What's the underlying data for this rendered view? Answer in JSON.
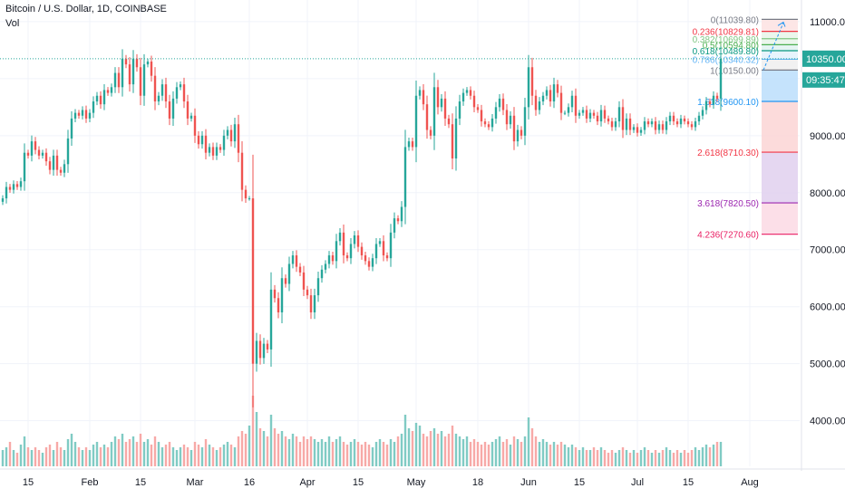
{
  "header": {
    "symbol": "Bitcoin / U.S. Dollar, 1D, COINBASE",
    "volume_label": "Vol"
  },
  "colors": {
    "up": "#26a69a",
    "down": "#ef5350",
    "up_vol": "#80cbc4",
    "down_vol": "#f7a9a7",
    "price_line": "#26a69a",
    "axis_text": "#131722"
  },
  "chart_data": {
    "type": "candlestick",
    "title": "Bitcoin / U.S. Dollar, 1D, COINBASE",
    "ylim": [
      3200,
      11300
    ],
    "y_ticks": [
      "11000.00",
      "10000.00",
      "9000.00",
      "8000.00",
      "7000.00",
      "6000.00",
      "5000.00",
      "4000.00"
    ],
    "x_ticks": [
      {
        "label": "15",
        "date": "2020-01-15"
      },
      {
        "label": "Feb",
        "date": "2020-02-01"
      },
      {
        "label": "15",
        "date": "2020-02-15"
      },
      {
        "label": "Mar",
        "date": "2020-03-01"
      },
      {
        "label": "16",
        "date": "2020-03-16"
      },
      {
        "label": "Apr",
        "date": "2020-04-01"
      },
      {
        "label": "15",
        "date": "2020-04-15"
      },
      {
        "label": "May",
        "date": "2020-05-01"
      },
      {
        "label": "18",
        "date": "2020-05-18"
      },
      {
        "label": "Jun",
        "date": "2020-06-01"
      },
      {
        "label": "15",
        "date": "2020-06-15"
      },
      {
        "label": "Jul",
        "date": "2020-07-01"
      },
      {
        "label": "15",
        "date": "2020-07-15"
      },
      {
        "label": "Aug",
        "date": "2020-08-01"
      }
    ],
    "first_date": "2020-01-08",
    "closes": [
      7900,
      8100,
      8050,
      8150,
      8100,
      8200,
      8700,
      8650,
      8900,
      8750,
      8650,
      8700,
      8550,
      8400,
      8650,
      8400,
      8350,
      8500,
      8950,
      9300,
      9400,
      9350,
      9450,
      9300,
      9400,
      9600,
      9700,
      9550,
      9800,
      9750,
      9850,
      10100,
      9850,
      10350,
      10250,
      9900,
      10350,
      10200,
      9700,
      10250,
      10300,
      10050,
      9600,
      9700,
      9900,
      9600,
      9300,
      9650,
      9850,
      9900,
      9600,
      9300,
      9350,
      9000,
      8850,
      9000,
      8700,
      8800,
      8650,
      8800,
      8750,
      9000,
      9100,
      8900,
      9200,
      8700,
      8050,
      7900,
      7900,
      5000,
      5400,
      5100,
      5350,
      5250,
      6300,
      6150,
      5900,
      6500,
      6400,
      6750,
      6900,
      6700,
      6600,
      6300,
      6200,
      5900,
      6200,
      6500,
      6650,
      6750,
      6900,
      6800,
      7150,
      7300,
      6900,
      6850,
      7100,
      7250,
      7050,
      6900,
      6800,
      6700,
      6850,
      7100,
      7150,
      6900,
      6850,
      7300,
      7550,
      7500,
      7750,
      8800,
      8900,
      8800,
      9700,
      9800,
      9550,
      9100,
      9000,
      9850,
      9500,
      9650,
      9300,
      9200,
      8600,
      9300,
      9600,
      9750,
      9800,
      9700,
      9500,
      9450,
      9250,
      9200,
      9150,
      9300,
      9500,
      9650,
      9450,
      9200,
      9350,
      8900,
      9100,
      9000,
      9500,
      10200,
      9700,
      9450,
      9600,
      9700,
      9800,
      9600,
      9900,
      9750,
      9400,
      9400,
      9500,
      9700,
      9350,
      9400,
      9450,
      9300,
      9400,
      9350,
      9250,
      9450,
      9300,
      9250,
      9150,
      9250,
      9500,
      9100,
      9300,
      9100,
      9150,
      9050,
      9100,
      9250,
      9200,
      9250,
      9100,
      9200,
      9100,
      9250,
      9350,
      9250,
      9200,
      9300,
      9250,
      9200,
      9150,
      9250,
      9350,
      9450,
      9600,
      9550,
      9700,
      9650,
      10350
    ],
    "volumes": [
      0.3,
      0.35,
      0.45,
      0.3,
      0.25,
      0.4,
      0.55,
      0.35,
      0.3,
      0.35,
      0.3,
      0.25,
      0.35,
      0.4,
      0.3,
      0.45,
      0.35,
      0.3,
      0.5,
      0.6,
      0.45,
      0.35,
      0.3,
      0.35,
      0.3,
      0.4,
      0.45,
      0.35,
      0.4,
      0.35,
      0.45,
      0.55,
      0.5,
      0.6,
      0.45,
      0.5,
      0.55,
      0.45,
      0.6,
      0.45,
      0.5,
      0.4,
      0.55,
      0.45,
      0.35,
      0.4,
      0.45,
      0.35,
      0.3,
      0.35,
      0.4,
      0.35,
      0.3,
      0.45,
      0.4,
      0.35,
      0.5,
      0.4,
      0.35,
      0.3,
      0.35,
      0.4,
      0.45,
      0.4,
      0.35,
      0.55,
      0.65,
      0.6,
      0.75,
      1.3,
      1.0,
      0.7,
      0.65,
      0.55,
      0.95,
      0.7,
      0.6,
      0.65,
      0.55,
      0.5,
      0.6,
      0.55,
      0.45,
      0.55,
      0.5,
      0.55,
      0.5,
      0.45,
      0.5,
      0.45,
      0.55,
      0.45,
      0.5,
      0.55,
      0.45,
      0.4,
      0.45,
      0.5,
      0.45,
      0.4,
      0.45,
      0.4,
      0.35,
      0.45,
      0.5,
      0.45,
      0.4,
      0.5,
      0.45,
      0.55,
      0.6,
      0.95,
      0.7,
      0.65,
      0.8,
      0.75,
      0.6,
      0.55,
      0.65,
      0.7,
      0.6,
      0.65,
      0.55,
      0.6,
      0.75,
      0.6,
      0.55,
      0.5,
      0.55,
      0.45,
      0.5,
      0.45,
      0.4,
      0.45,
      0.4,
      0.45,
      0.5,
      0.55,
      0.45,
      0.5,
      0.4,
      0.55,
      0.5,
      0.45,
      0.55,
      0.9,
      0.7,
      0.55,
      0.45,
      0.5,
      0.45,
      0.4,
      0.45,
      0.4,
      0.45,
      0.4,
      0.35,
      0.4,
      0.35,
      0.3,
      0.35,
      0.3,
      0.3,
      0.35,
      0.3,
      0.35,
      0.3,
      0.25,
      0.3,
      0.25,
      0.3,
      0.35,
      0.3,
      0.25,
      0.3,
      0.25,
      0.3,
      0.35,
      0.3,
      0.25,
      0.3,
      0.25,
      0.3,
      0.35,
      0.3,
      0.25,
      0.3,
      0.25,
      0.3,
      0.25,
      0.3,
      0.35,
      0.3,
      0.35,
      0.4,
      0.35,
      0.4,
      0.45,
      0.45
    ],
    "price_line": 10350,
    "fib_levels": [
      {
        "label": "0(11039.80)",
        "value": 11039.8,
        "color": "#787b86"
      },
      {
        "label": "0.236(10829.81)",
        "value": 10829.81,
        "color": "#f23645"
      },
      {
        "label": "0.382(10699.89)",
        "value": 10699.89,
        "color": "#81c784"
      },
      {
        "label": "0.5(10594.80)",
        "value": 10594.8,
        "color": "#4caf50"
      },
      {
        "label": "0.618(10489.80)",
        "value": 10489.8,
        "color": "#089981"
      },
      {
        "label": "0.786(10340.32)",
        "value": 10340.32,
        "color": "#64b5f6"
      },
      {
        "label": "1(10150.00)",
        "value": 10150,
        "color": "#787b86"
      },
      {
        "label": "1.618(9600.10)",
        "value": 9600.1,
        "color": "#2196f3"
      },
      {
        "label": "2.618(8710.30)",
        "value": 8710.3,
        "color": "#f23645"
      },
      {
        "label": "3.618(7820.50)",
        "value": 7820.5,
        "color": "#9c27b0"
      },
      {
        "label": "4.236(7270.60)",
        "value": 7270.6,
        "color": "#e91e63"
      }
    ],
    "fib_fills": [
      "#fde2e2",
      "#e8f5e9",
      "#e8f5e9",
      "#e0f2f1",
      "#e3f2fd",
      "#eeeeee",
      "#bbdefb",
      "#fcd5d5",
      "#e1d0ee",
      "#fcd9e4"
    ],
    "price_label": "10350.00",
    "countdown_label": "09:35:47"
  }
}
